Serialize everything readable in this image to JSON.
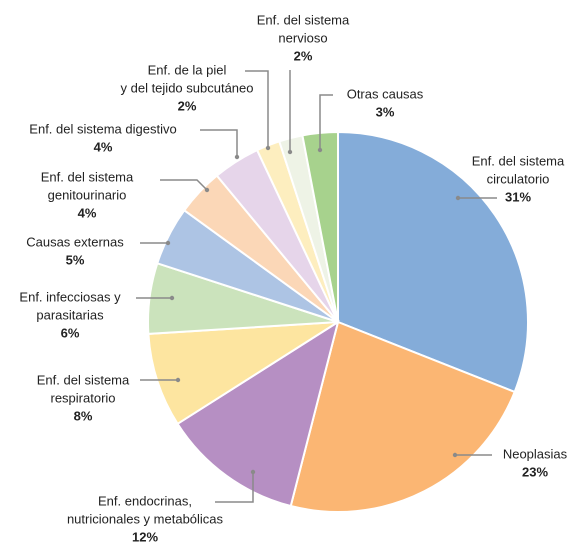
{
  "chart_data": {
    "type": "pie",
    "labels": [
      [
        "Enf. del sistema",
        "circulatorio"
      ],
      [
        "Neoplasias"
      ],
      [
        "Enf. endocrinas,",
        "nutricionales y metabólicas"
      ],
      [
        "Enf. del sistema",
        "respiratorio"
      ],
      [
        "Enf. infecciosas y",
        "parasitarias"
      ],
      [
        "Causas externas"
      ],
      [
        "Enf. del sistema",
        "genitourinario"
      ],
      [
        "Enf. del sistema digestivo"
      ],
      [
        "Enf. de la piel",
        "y del tejido subcutáneo"
      ],
      [
        "Enf. del sistema",
        "nervioso"
      ],
      [
        "Otras causas"
      ]
    ],
    "values": [
      31,
      23,
      12,
      8,
      6,
      5,
      4,
      4,
      2,
      2,
      3
    ],
    "value_labels": [
      "31%",
      "23%",
      "12%",
      "8%",
      "6%",
      "5%",
      "4%",
      "4%",
      "2%",
      "2%",
      "3%"
    ],
    "colors": [
      "#84acd9",
      "#fbb673",
      "#b68fc3",
      "#fde5a0",
      "#cbe3bc",
      "#adc4e4",
      "#fbd7b7",
      "#e6d5ea",
      "#fdeebf",
      "#eef3e6",
      "#a7d28d"
    ]
  }
}
